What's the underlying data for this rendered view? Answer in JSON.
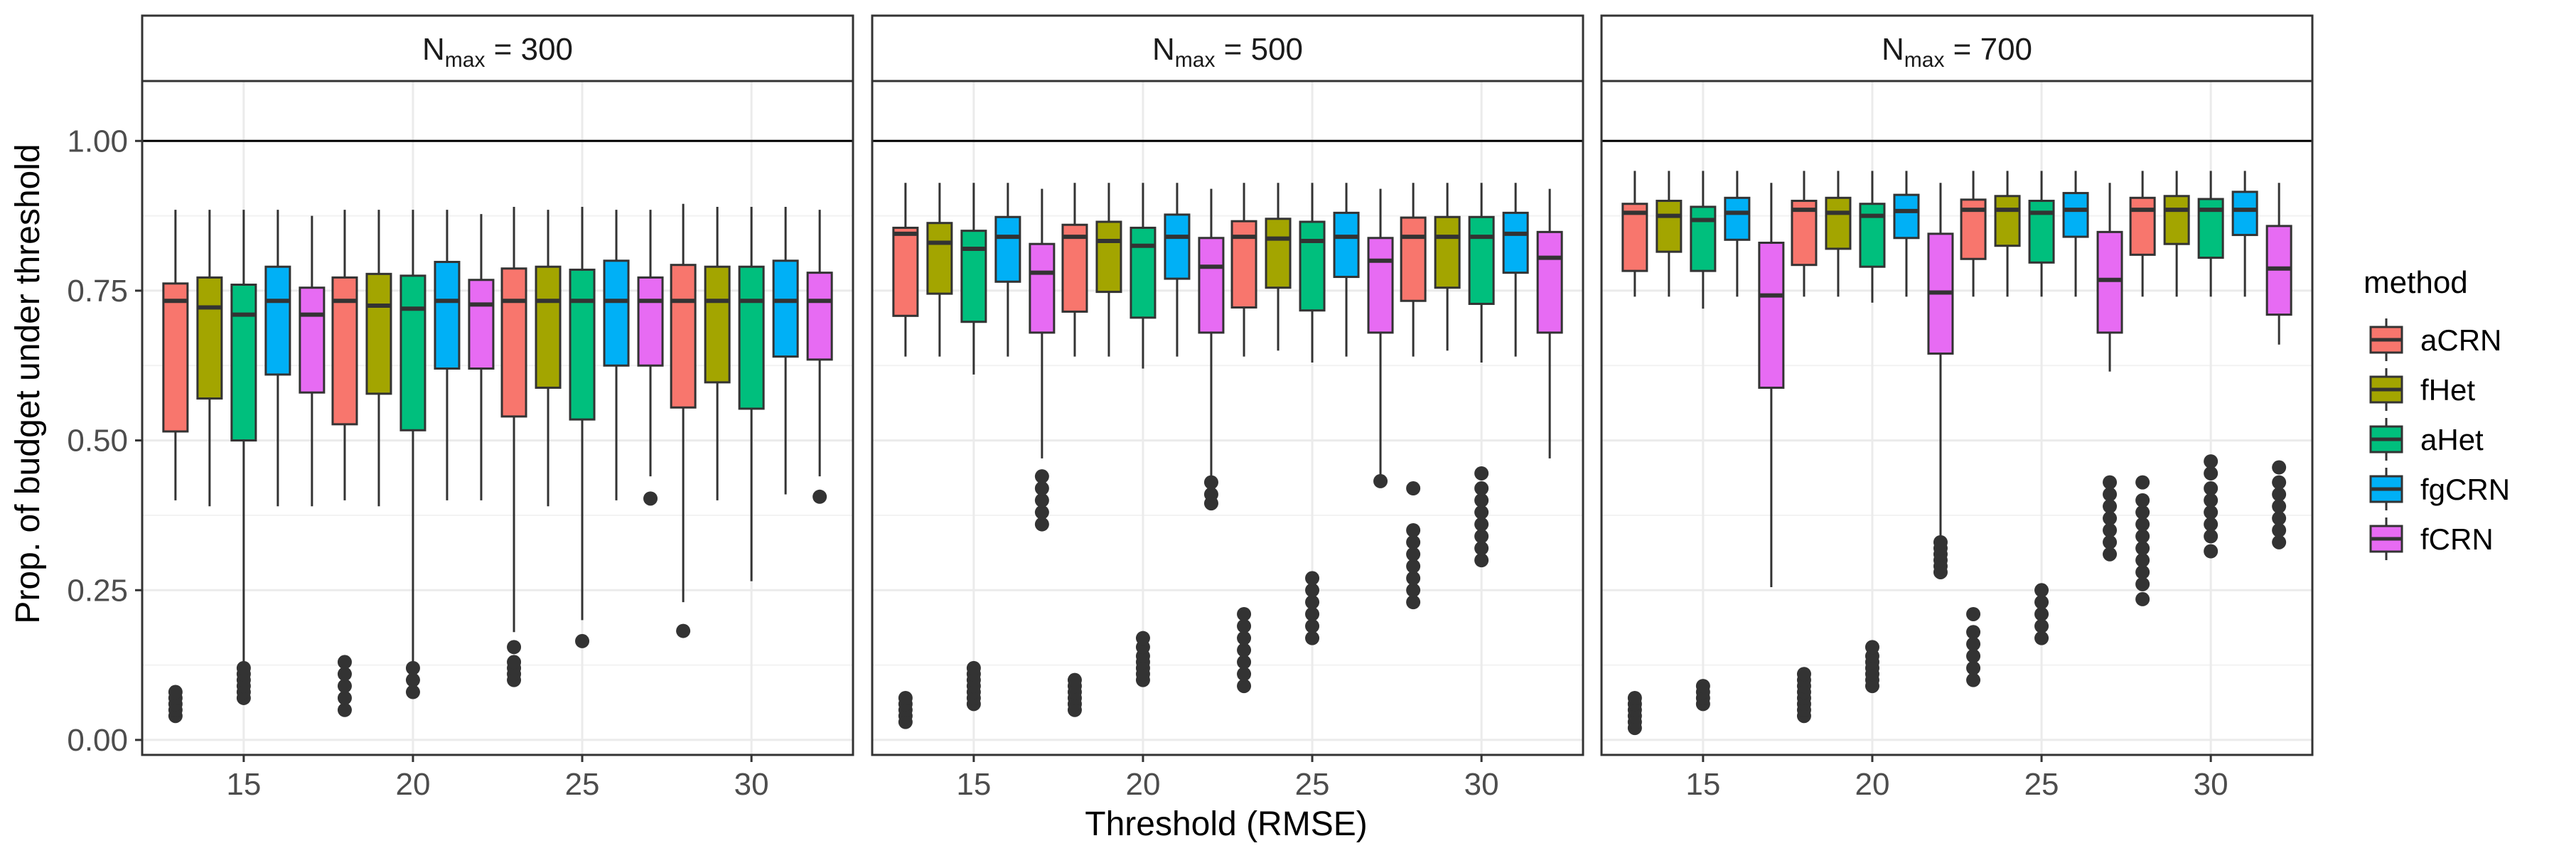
{
  "chart_data": {
    "type": "boxplot",
    "xlabel": "Threshold (RMSE)",
    "ylabel": "Prop. of budget under threshold",
    "ylim": [
      -0.025,
      1.1
    ],
    "yticks": [
      0.0,
      0.25,
      0.5,
      0.75,
      1.0
    ],
    "ytick_labels": [
      "0.00",
      "0.25",
      "0.50",
      "0.75",
      "1.00"
    ],
    "reference_line": 1.0,
    "categories": [
      "15",
      "20",
      "25",
      "30"
    ],
    "legend": {
      "title": "method",
      "position": "right",
      "items": [
        {
          "name": "aCRN",
          "color": "#F8766D"
        },
        {
          "name": "fHet",
          "color": "#A3A500"
        },
        {
          "name": "aHet",
          "color": "#00BF7D"
        },
        {
          "name": "fgCRN",
          "color": "#00B0F6"
        },
        {
          "name": "fCRN",
          "color": "#E76BF3"
        }
      ]
    },
    "panels": [
      {
        "label_main": "N",
        "label_sub": "max",
        "label_rest": " = 300",
        "groups": [
          {
            "category": "15",
            "boxes": [
              {
                "min": 0.4,
                "q1": 0.515,
                "median": 0.733,
                "q3": 0.762,
                "max": 0.885,
                "outliers": [
                  0.04,
                  0.05,
                  0.06,
                  0.07,
                  0.08
                ]
              },
              {
                "min": 0.39,
                "q1": 0.57,
                "median": 0.722,
                "q3": 0.772,
                "max": 0.885,
                "outliers": []
              },
              {
                "min": 0.12,
                "q1": 0.5,
                "median": 0.71,
                "q3": 0.76,
                "max": 0.885,
                "outliers": [
                  0.07,
                  0.08,
                  0.09,
                  0.1,
                  0.11,
                  0.12
                ]
              },
              {
                "min": 0.39,
                "q1": 0.61,
                "median": 0.733,
                "q3": 0.79,
                "max": 0.885,
                "outliers": []
              },
              {
                "min": 0.39,
                "q1": 0.58,
                "median": 0.71,
                "q3": 0.755,
                "max": 0.875,
                "outliers": []
              }
            ]
          },
          {
            "category": "20",
            "boxes": [
              {
                "min": 0.4,
                "q1": 0.527,
                "median": 0.733,
                "q3": 0.772,
                "max": 0.885,
                "outliers": [
                  0.05,
                  0.07,
                  0.09,
                  0.11,
                  0.13
                ]
              },
              {
                "min": 0.39,
                "q1": 0.578,
                "median": 0.725,
                "q3": 0.778,
                "max": 0.885,
                "outliers": []
              },
              {
                "min": 0.13,
                "q1": 0.517,
                "median": 0.72,
                "q3": 0.775,
                "max": 0.885,
                "outliers": [
                  0.08,
                  0.1,
                  0.12
                ]
              },
              {
                "min": 0.4,
                "q1": 0.62,
                "median": 0.733,
                "q3": 0.798,
                "max": 0.885,
                "outliers": []
              },
              {
                "min": 0.4,
                "q1": 0.62,
                "median": 0.727,
                "q3": 0.768,
                "max": 0.878,
                "outliers": []
              }
            ]
          },
          {
            "category": "25",
            "boxes": [
              {
                "min": 0.18,
                "q1": 0.54,
                "median": 0.733,
                "q3": 0.787,
                "max": 0.89,
                "outliers": [
                  0.1,
                  0.11,
                  0.12,
                  0.13,
                  0.155
                ]
              },
              {
                "min": 0.39,
                "q1": 0.588,
                "median": 0.733,
                "q3": 0.79,
                "max": 0.885,
                "outliers": []
              },
              {
                "min": 0.2,
                "q1": 0.535,
                "median": 0.733,
                "q3": 0.785,
                "max": 0.89,
                "outliers": [
                  0.165
                ]
              },
              {
                "min": 0.4,
                "q1": 0.625,
                "median": 0.733,
                "q3": 0.8,
                "max": 0.885,
                "outliers": []
              },
              {
                "min": 0.44,
                "q1": 0.625,
                "median": 0.733,
                "q3": 0.772,
                "max": 0.885,
                "outliers": [
                  0.403
                ]
              }
            ]
          },
          {
            "category": "30",
            "boxes": [
              {
                "min": 0.23,
                "q1": 0.555,
                "median": 0.733,
                "q3": 0.793,
                "max": 0.895,
                "outliers": [
                  0.182
                ]
              },
              {
                "min": 0.4,
                "q1": 0.597,
                "median": 0.733,
                "q3": 0.79,
                "max": 0.89,
                "outliers": []
              },
              {
                "min": 0.265,
                "q1": 0.553,
                "median": 0.733,
                "q3": 0.79,
                "max": 0.89,
                "outliers": []
              },
              {
                "min": 0.41,
                "q1": 0.64,
                "median": 0.733,
                "q3": 0.8,
                "max": 0.89,
                "outliers": []
              },
              {
                "min": 0.44,
                "q1": 0.635,
                "median": 0.733,
                "q3": 0.78,
                "max": 0.885,
                "outliers": [
                  0.406
                ]
              }
            ]
          }
        ]
      },
      {
        "label_main": "N",
        "label_sub": "max",
        "label_rest": " = 500",
        "groups": [
          {
            "category": "15",
            "boxes": [
              {
                "min": 0.64,
                "q1": 0.708,
                "median": 0.845,
                "q3": 0.855,
                "max": 0.93,
                "outliers": [
                  0.03,
                  0.04,
                  0.05,
                  0.06,
                  0.07
                ]
              },
              {
                "min": 0.64,
                "q1": 0.745,
                "median": 0.83,
                "q3": 0.863,
                "max": 0.93,
                "outliers": []
              },
              {
                "min": 0.61,
                "q1": 0.698,
                "median": 0.82,
                "q3": 0.85,
                "max": 0.93,
                "outliers": [
                  0.06,
                  0.07,
                  0.08,
                  0.09,
                  0.1,
                  0.11,
                  0.12
                ]
              },
              {
                "min": 0.64,
                "q1": 0.765,
                "median": 0.84,
                "q3": 0.873,
                "max": 0.93,
                "outliers": []
              },
              {
                "min": 0.47,
                "q1": 0.68,
                "median": 0.78,
                "q3": 0.828,
                "max": 0.92,
                "outliers": [
                  0.36,
                  0.38,
                  0.4,
                  0.42,
                  0.44
                ]
              }
            ]
          },
          {
            "category": "20",
            "boxes": [
              {
                "min": 0.64,
                "q1": 0.715,
                "median": 0.84,
                "q3": 0.86,
                "max": 0.93,
                "outliers": [
                  0.05,
                  0.06,
                  0.07,
                  0.08,
                  0.09,
                  0.1
                ]
              },
              {
                "min": 0.64,
                "q1": 0.748,
                "median": 0.833,
                "q3": 0.865,
                "max": 0.93,
                "outliers": []
              },
              {
                "min": 0.62,
                "q1": 0.705,
                "median": 0.825,
                "q3": 0.855,
                "max": 0.93,
                "outliers": [
                  0.1,
                  0.11,
                  0.12,
                  0.13,
                  0.14,
                  0.155,
                  0.17
                ]
              },
              {
                "min": 0.64,
                "q1": 0.77,
                "median": 0.84,
                "q3": 0.877,
                "max": 0.93,
                "outliers": []
              },
              {
                "min": 0.44,
                "q1": 0.68,
                "median": 0.79,
                "q3": 0.838,
                "max": 0.92,
                "outliers": [
                  0.395,
                  0.41,
                  0.43
                ]
              }
            ]
          },
          {
            "category": "25",
            "boxes": [
              {
                "min": 0.64,
                "q1": 0.722,
                "median": 0.84,
                "q3": 0.866,
                "max": 0.93,
                "outliers": [
                  0.09,
                  0.11,
                  0.13,
                  0.15,
                  0.17,
                  0.19,
                  0.21
                ]
              },
              {
                "min": 0.65,
                "q1": 0.755,
                "median": 0.837,
                "q3": 0.87,
                "max": 0.93,
                "outliers": []
              },
              {
                "min": 0.63,
                "q1": 0.717,
                "median": 0.833,
                "q3": 0.865,
                "max": 0.93,
                "outliers": [
                  0.17,
                  0.19,
                  0.21,
                  0.23,
                  0.25,
                  0.27
                ]
              },
              {
                "min": 0.64,
                "q1": 0.773,
                "median": 0.84,
                "q3": 0.88,
                "max": 0.93,
                "outliers": []
              },
              {
                "min": 0.44,
                "q1": 0.68,
                "median": 0.8,
                "q3": 0.838,
                "max": 0.92,
                "outliers": [
                  0.432
                ]
              }
            ]
          },
          {
            "category": "30",
            "boxes": [
              {
                "min": 0.64,
                "q1": 0.733,
                "median": 0.84,
                "q3": 0.872,
                "max": 0.93,
                "outliers": [
                  0.23,
                  0.25,
                  0.27,
                  0.29,
                  0.31,
                  0.33,
                  0.35,
                  0.42
                ]
              },
              {
                "min": 0.65,
                "q1": 0.755,
                "median": 0.84,
                "q3": 0.873,
                "max": 0.93,
                "outliers": []
              },
              {
                "min": 0.63,
                "q1": 0.728,
                "median": 0.84,
                "q3": 0.873,
                "max": 0.93,
                "outliers": [
                  0.3,
                  0.32,
                  0.34,
                  0.36,
                  0.38,
                  0.4,
                  0.42,
                  0.445
                ]
              },
              {
                "min": 0.64,
                "q1": 0.78,
                "median": 0.845,
                "q3": 0.88,
                "max": 0.93,
                "outliers": []
              },
              {
                "min": 0.47,
                "q1": 0.68,
                "median": 0.805,
                "q3": 0.848,
                "max": 0.92,
                "outliers": []
              }
            ]
          }
        ]
      },
      {
        "label_main": "N",
        "label_sub": "max",
        "label_rest": " = 700",
        "groups": [
          {
            "category": "15",
            "boxes": [
              {
                "min": 0.74,
                "q1": 0.783,
                "median": 0.88,
                "q3": 0.895,
                "max": 0.95,
                "outliers": [
                  0.02,
                  0.03,
                  0.04,
                  0.05,
                  0.06,
                  0.07
                ]
              },
              {
                "min": 0.74,
                "q1": 0.815,
                "median": 0.875,
                "q3": 0.9,
                "max": 0.95,
                "outliers": []
              },
              {
                "min": 0.72,
                "q1": 0.783,
                "median": 0.868,
                "q3": 0.89,
                "max": 0.95,
                "outliers": [
                  0.06,
                  0.07,
                  0.08,
                  0.09
                ]
              },
              {
                "min": 0.74,
                "q1": 0.835,
                "median": 0.88,
                "q3": 0.905,
                "max": 0.95,
                "outliers": []
              },
              {
                "min": 0.255,
                "q1": 0.588,
                "median": 0.742,
                "q3": 0.83,
                "max": 0.93,
                "outliers": []
              }
            ]
          },
          {
            "category": "20",
            "boxes": [
              {
                "min": 0.74,
                "q1": 0.793,
                "median": 0.885,
                "q3": 0.9,
                "max": 0.95,
                "outliers": [
                  0.04,
                  0.05,
                  0.06,
                  0.07,
                  0.08,
                  0.09,
                  0.1,
                  0.11
                ]
              },
              {
                "min": 0.74,
                "q1": 0.82,
                "median": 0.88,
                "q3": 0.905,
                "max": 0.95,
                "outliers": []
              },
              {
                "min": 0.73,
                "q1": 0.79,
                "median": 0.875,
                "q3": 0.895,
                "max": 0.95,
                "outliers": [
                  0.09,
                  0.1,
                  0.11,
                  0.12,
                  0.13,
                  0.14,
                  0.155
                ]
              },
              {
                "min": 0.74,
                "q1": 0.838,
                "median": 0.883,
                "q3": 0.91,
                "max": 0.95,
                "outliers": []
              },
              {
                "min": 0.34,
                "q1": 0.645,
                "median": 0.747,
                "q3": 0.845,
                "max": 0.93,
                "outliers": [
                  0.28,
                  0.29,
                  0.3,
                  0.31,
                  0.32,
                  0.33
                ]
              }
            ]
          },
          {
            "category": "25",
            "boxes": [
              {
                "min": 0.74,
                "q1": 0.803,
                "median": 0.885,
                "q3": 0.902,
                "max": 0.95,
                "outliers": [
                  0.1,
                  0.12,
                  0.14,
                  0.16,
                  0.18,
                  0.21
                ]
              },
              {
                "min": 0.74,
                "q1": 0.825,
                "median": 0.885,
                "q3": 0.908,
                "max": 0.95,
                "outliers": []
              },
              {
                "min": 0.74,
                "q1": 0.797,
                "median": 0.88,
                "q3": 0.9,
                "max": 0.95,
                "outliers": [
                  0.17,
                  0.19,
                  0.21,
                  0.23,
                  0.25
                ]
              },
              {
                "min": 0.74,
                "q1": 0.84,
                "median": 0.885,
                "q3": 0.913,
                "max": 0.95,
                "outliers": []
              },
              {
                "min": 0.615,
                "q1": 0.68,
                "median": 0.768,
                "q3": 0.848,
                "max": 0.93,
                "outliers": [
                  0.31,
                  0.33,
                  0.35,
                  0.37,
                  0.39,
                  0.41,
                  0.43
                ]
              }
            ]
          },
          {
            "category": "30",
            "boxes": [
              {
                "min": 0.74,
                "q1": 0.81,
                "median": 0.885,
                "q3": 0.905,
                "max": 0.95,
                "outliers": [
                  0.235,
                  0.26,
                  0.28,
                  0.3,
                  0.32,
                  0.34,
                  0.36,
                  0.38,
                  0.4,
                  0.43
                ]
              },
              {
                "min": 0.74,
                "q1": 0.828,
                "median": 0.885,
                "q3": 0.908,
                "max": 0.95,
                "outliers": []
              },
              {
                "min": 0.74,
                "q1": 0.805,
                "median": 0.885,
                "q3": 0.903,
                "max": 0.95,
                "outliers": [
                  0.315,
                  0.34,
                  0.36,
                  0.38,
                  0.4,
                  0.42,
                  0.445,
                  0.465
                ]
              },
              {
                "min": 0.74,
                "q1": 0.843,
                "median": 0.885,
                "q3": 0.915,
                "max": 0.95,
                "outliers": []
              },
              {
                "min": 0.66,
                "q1": 0.71,
                "median": 0.787,
                "q3": 0.858,
                "max": 0.93,
                "outliers": [
                  0.33,
                  0.35,
                  0.37,
                  0.39,
                  0.41,
                  0.43,
                  0.455
                ]
              }
            ]
          }
        ]
      }
    ]
  }
}
